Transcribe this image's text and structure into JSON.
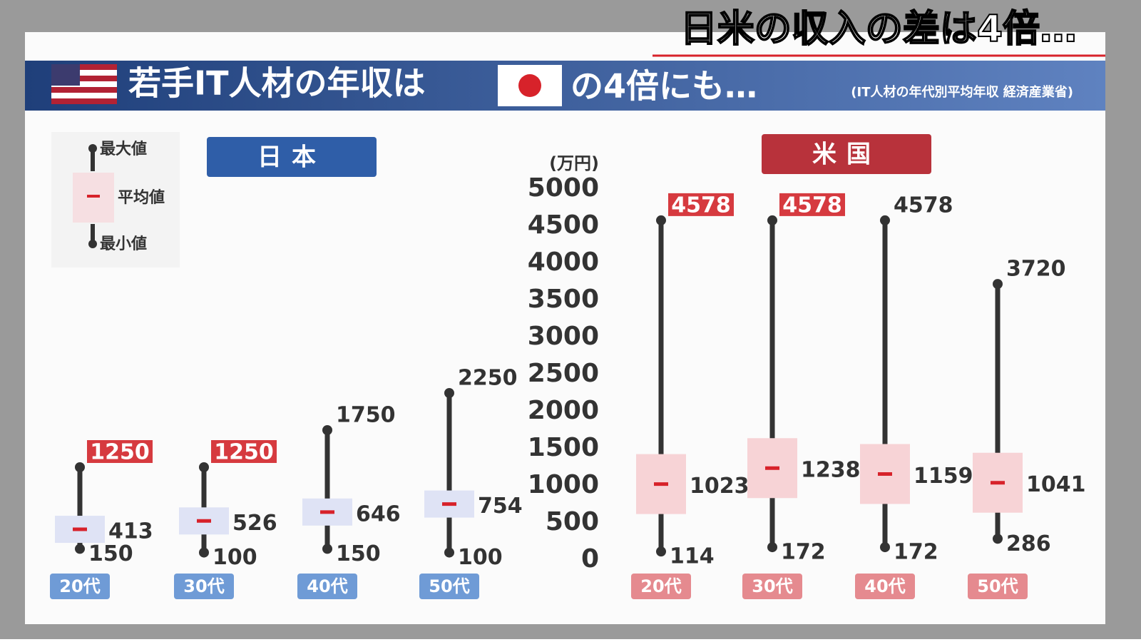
{
  "caption": "日米の収入の差は4倍…",
  "header": {
    "title_before": "若手IT人材の年収は",
    "title_after": "の4倍にも…",
    "source": "(IT人材の年代別平均年収 経済産業省)"
  },
  "legend": {
    "max": "最大値",
    "mean": "平均値",
    "min": "最小値"
  },
  "chart_data": {
    "type": "range",
    "y_unit": "(万円)",
    "ylim": [
      0,
      5000
    ],
    "yticks": [
      0,
      500,
      1000,
      1500,
      2000,
      2500,
      3000,
      3500,
      4000,
      4500,
      5000
    ],
    "groups": [
      {
        "name": "日本",
        "color": "#2f5ea8",
        "label_color": "#6f9bd6",
        "box_color": "#dfe3f5",
        "categories": [
          "20代",
          "30代",
          "40代",
          "50代"
        ],
        "max": [
          1250,
          1250,
          1750,
          2250
        ],
        "mean": [
          413,
          526,
          646,
          754
        ],
        "min": [
          150,
          100,
          150,
          100
        ],
        "max_highlight": [
          true,
          true,
          false,
          false
        ]
      },
      {
        "name": "米国",
        "color": "#b8323b",
        "label_color": "#e58a8f",
        "box_color": "#f7d3d6",
        "categories": [
          "20代",
          "30代",
          "40代",
          "50代"
        ],
        "max": [
          4578,
          4578,
          4578,
          3720
        ],
        "mean": [
          1023,
          1238,
          1159,
          1041
        ],
        "min": [
          114,
          172,
          172,
          286
        ],
        "max_highlight": [
          true,
          true,
          false,
          false
        ]
      }
    ]
  }
}
